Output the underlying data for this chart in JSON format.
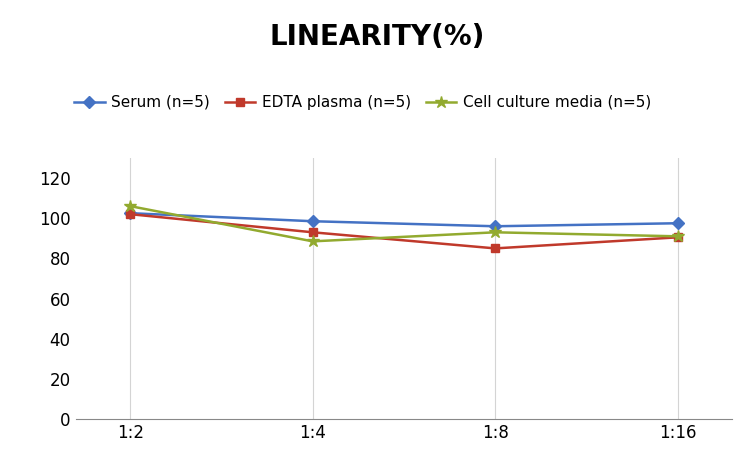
{
  "title": "LINEARITY(%)",
  "title_fontsize": 20,
  "title_fontweight": "bold",
  "x_labels": [
    "1:2",
    "1:4",
    "1:8",
    "1:16"
  ],
  "x_values": [
    0,
    1,
    2,
    3
  ],
  "series": [
    {
      "label": "Serum (n=5)",
      "values": [
        102.5,
        98.5,
        96.0,
        97.5
      ],
      "color": "#4472C4",
      "marker": "D",
      "markersize": 6,
      "linewidth": 1.8
    },
    {
      "label": "EDTA plasma (n=5)",
      "values": [
        102.0,
        93.0,
        85.0,
        90.5
      ],
      "color": "#C0392B",
      "marker": "s",
      "markersize": 6,
      "linewidth": 1.8
    },
    {
      "label": "Cell culture media (n=5)",
      "values": [
        106.0,
        88.5,
        93.0,
        91.0
      ],
      "color": "#92AA2F",
      "marker": "*",
      "markersize": 9,
      "linewidth": 1.8
    }
  ],
  "ylim": [
    0,
    130
  ],
  "yticks": [
    0,
    20,
    40,
    60,
    80,
    100,
    120
  ],
  "background_color": "#ffffff",
  "grid_color": "#d4d4d4",
  "legend_fontsize": 11,
  "axis_fontsize": 12
}
